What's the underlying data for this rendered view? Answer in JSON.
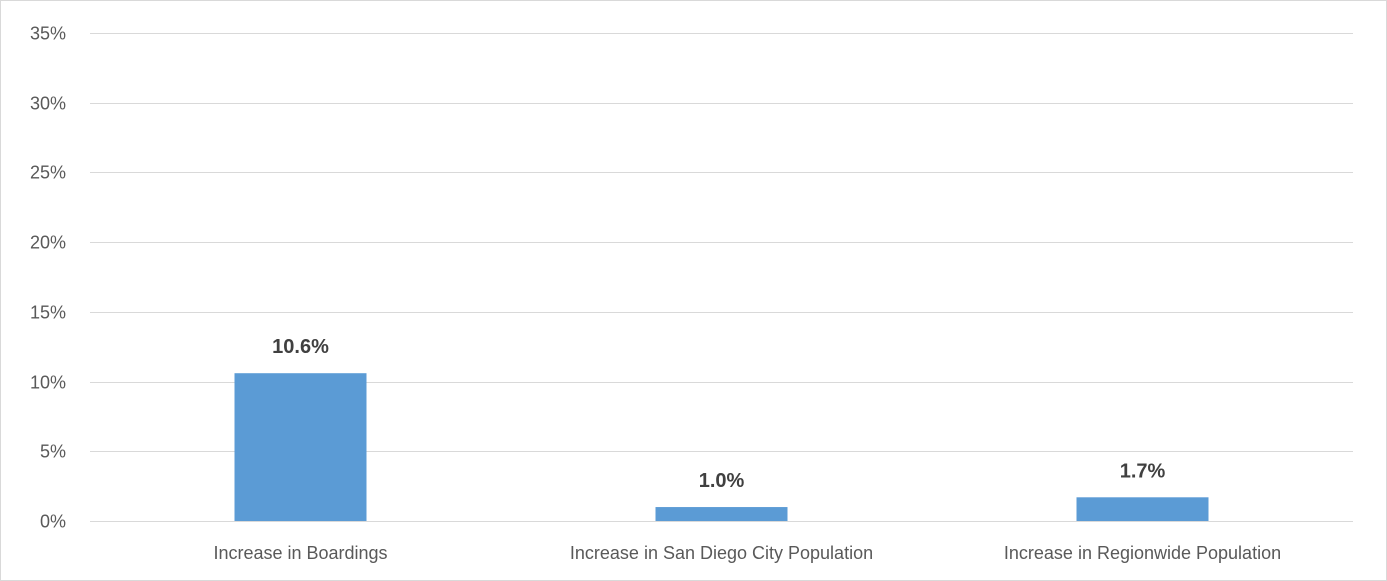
{
  "chart_data": {
    "type": "bar",
    "title": "",
    "xlabel": "",
    "ylabel": "",
    "categories": [
      "Increase in Boardings",
      "Increase in San Diego City Population",
      "Increase in Regionwide Population"
    ],
    "values": [
      10.6,
      1.0,
      1.7
    ],
    "data_labels": [
      "10.6%",
      "1.0%",
      "1.7%"
    ],
    "ylim": [
      0,
      35
    ],
    "yticks": [
      0,
      5,
      10,
      15,
      20,
      25,
      30,
      35
    ],
    "ytick_labels": [
      "0%",
      "5%",
      "10%",
      "15%",
      "20%",
      "25%",
      "30%",
      "35%"
    ],
    "grid": true,
    "legend": "none",
    "bar_color": "#5b9bd5"
  }
}
